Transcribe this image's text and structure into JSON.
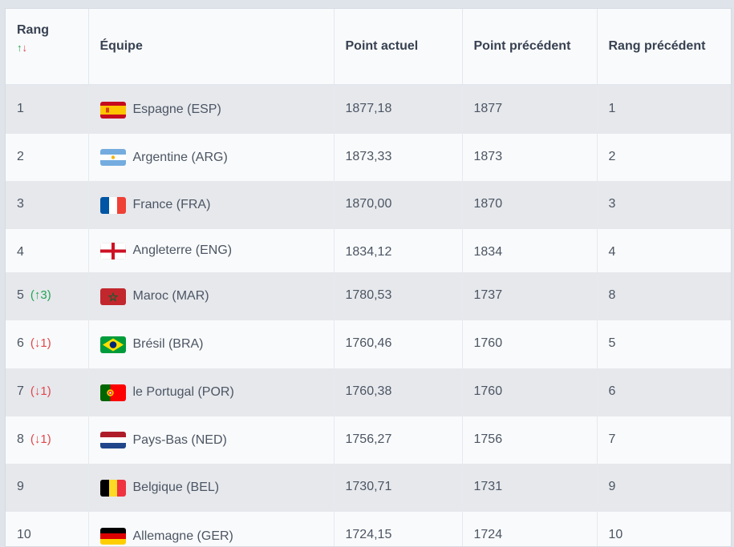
{
  "headers": {
    "rang": "Rang",
    "sort_up": "↑",
    "sort_down": "↓",
    "equipe": "Équipe",
    "point_actuel": "Point actuel",
    "point_precedent": "Point précédent",
    "rang_precedent": "Rang précédent"
  },
  "rows": [
    {
      "rank": "1",
      "change": "",
      "team": "Espagne (ESP)",
      "flag": "spain-flag-icon",
      "point": "1877,18",
      "prev_point": "1877",
      "prev_rank": "1"
    },
    {
      "rank": "2",
      "change": "",
      "team": "Argentine (ARG)",
      "flag": "argentina-flag-icon",
      "point": "1873,33",
      "prev_point": "1873",
      "prev_rank": "2"
    },
    {
      "rank": "3",
      "change": "",
      "team": "France (FRA)",
      "flag": "france-flag-icon",
      "point": "1870,00",
      "prev_point": "1870",
      "prev_rank": "3"
    },
    {
      "rank": "4",
      "change": "",
      "team": "Angleterre (ENG)",
      "flag": "england-flag-icon",
      "point": "1834,12",
      "prev_point": "1834",
      "prev_rank": "4"
    },
    {
      "rank": "5",
      "change": "(↑3)",
      "team": "Maroc (MAR)",
      "flag": "morocco-flag-icon",
      "point": "1780,53",
      "prev_point": "1737",
      "prev_rank": "8"
    },
    {
      "rank": "6",
      "change": "(↓1)",
      "team": "Brésil (BRA)",
      "flag": "brazil-flag-icon",
      "point": "1760,46",
      "prev_point": "1760",
      "prev_rank": "5"
    },
    {
      "rank": "7",
      "change": "(↓1)",
      "team": "le Portugal (POR)",
      "flag": "portugal-flag-icon",
      "point": "1760,38",
      "prev_point": "1760",
      "prev_rank": "6"
    },
    {
      "rank": "8",
      "change": "(↓1)",
      "team": "Pays-Bas (NED)",
      "flag": "netherlands-flag-icon",
      "point": "1756,27",
      "prev_point": "1756",
      "prev_rank": "7"
    },
    {
      "rank": "9",
      "change": "",
      "team": "Belgique (BEL)",
      "flag": "belgium-flag-icon",
      "point": "1730,71",
      "prev_point": "1731",
      "prev_rank": "9"
    },
    {
      "rank": "10",
      "change": "",
      "team": "Allemagne (GER)",
      "flag": "germany-flag-icon",
      "point": "1724,15",
      "prev_point": "1724",
      "prev_rank": "10"
    }
  ]
}
